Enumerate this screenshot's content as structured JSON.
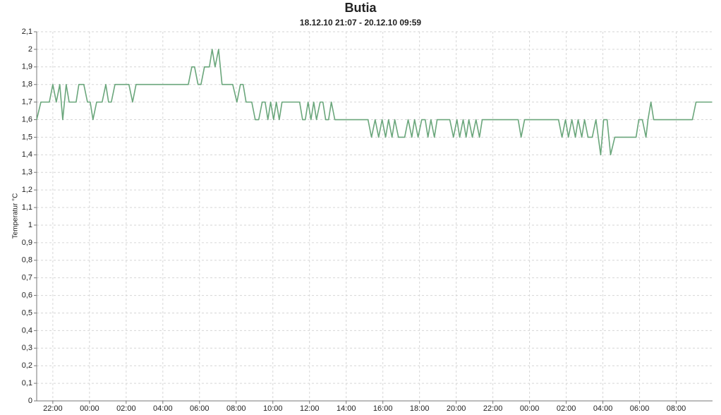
{
  "chart_data": {
    "type": "line",
    "title": "Butia",
    "subtitle": "18.12.10 21:07 - 20.12.10 09:59",
    "y_label": "Temperatur °C",
    "color": "#6aa67b",
    "grid": true,
    "xlim": [
      21.12,
      57.98
    ],
    "xticks": [
      {
        "value": 22,
        "label": "22:00"
      },
      {
        "value": 24,
        "label": "00:00"
      },
      {
        "value": 26,
        "label": "02:00"
      },
      {
        "value": 28,
        "label": "04:00"
      },
      {
        "value": 30,
        "label": "06:00"
      },
      {
        "value": 32,
        "label": "08:00"
      },
      {
        "value": 34,
        "label": "10:00"
      },
      {
        "value": 36,
        "label": "12:00"
      },
      {
        "value": 38,
        "label": "14:00"
      },
      {
        "value": 40,
        "label": "16:00"
      },
      {
        "value": 42,
        "label": "18:00"
      },
      {
        "value": 44,
        "label": "20:00"
      },
      {
        "value": 46,
        "label": "22:00"
      },
      {
        "value": 48,
        "label": "00:00"
      },
      {
        "value": 50,
        "label": "02:00"
      },
      {
        "value": 52,
        "label": "04:00"
      },
      {
        "value": 54,
        "label": "06:00"
      },
      {
        "value": 56,
        "label": "08:00"
      }
    ],
    "ylim": [
      0,
      2.1
    ],
    "yticks": [
      0,
      {
        "value": 0.1,
        "label": "0,1"
      },
      {
        "value": 0.2,
        "label": "0,2"
      },
      {
        "value": 0.3,
        "label": "0,3"
      },
      {
        "value": 0.4,
        "label": "0,4"
      },
      {
        "value": 0.5,
        "label": "0,5"
      },
      {
        "value": 0.6,
        "label": "0,6"
      },
      {
        "value": 0.7,
        "label": "0,7"
      },
      {
        "value": 0.8,
        "label": "0,8"
      },
      {
        "value": 0.9,
        "label": "0,9"
      },
      1,
      {
        "value": 1.1,
        "label": "1,1"
      },
      {
        "value": 1.2,
        "label": "1,2"
      },
      {
        "value": 1.3,
        "label": "1,3"
      },
      {
        "value": 1.4,
        "label": "1,4"
      },
      {
        "value": 1.5,
        "label": "1,5"
      },
      {
        "value": 1.6,
        "label": "1,6"
      },
      {
        "value": 1.7,
        "label": "1,7"
      },
      {
        "value": 1.8,
        "label": "1,8"
      },
      {
        "value": 1.9,
        "label": "1,9"
      },
      2,
      {
        "value": 2.1,
        "label": "2,1"
      }
    ],
    "x": [
      21.12,
      21.35,
      21.81,
      22.0,
      22.19,
      22.38,
      22.54,
      22.73,
      22.89,
      23.27,
      23.42,
      23.69,
      23.89,
      24.04,
      24.19,
      24.39,
      24.69,
      24.89,
      25.04,
      25.19,
      25.39,
      26.15,
      26.35,
      26.54,
      29.39,
      29.58,
      29.73,
      29.92,
      30.08,
      30.27,
      30.54,
      30.69,
      30.85,
      31.04,
      31.23,
      31.81,
      32.04,
      32.23,
      32.38,
      32.54,
      32.85,
      33.04,
      33.23,
      33.42,
      33.58,
      33.73,
      33.88,
      34.04,
      34.19,
      34.35,
      34.5,
      35.46,
      35.62,
      35.77,
      35.92,
      36.08,
      36.23,
      36.38,
      36.58,
      36.73,
      36.88,
      37.04,
      37.19,
      37.38,
      39.19,
      39.38,
      39.58,
      39.77,
      39.96,
      40.15,
      40.31,
      40.5,
      40.65,
      40.85,
      41.0,
      41.19,
      41.38,
      41.58,
      41.73,
      41.92,
      42.12,
      42.31,
      42.46,
      42.62,
      42.81,
      42.96,
      43.65,
      43.85,
      44.04,
      44.19,
      44.38,
      44.54,
      44.69,
      44.88,
      45.08,
      45.27,
      45.42,
      47.38,
      47.54,
      47.73,
      49.58,
      49.77,
      49.96,
      50.12,
      50.31,
      50.5,
      50.65,
      50.85,
      51.0,
      51.19,
      51.42,
      51.62,
      51.88,
      52.04,
      52.23,
      52.42,
      52.65,
      53.81,
      53.96,
      54.15,
      54.35,
      54.46,
      54.62,
      54.77,
      56.88,
      57.08,
      57.96
    ],
    "values": [
      1.6,
      1.7,
      1.7,
      1.8,
      1.7,
      1.8,
      1.6,
      1.8,
      1.7,
      1.7,
      1.8,
      1.8,
      1.7,
      1.7,
      1.6,
      1.7,
      1.7,
      1.8,
      1.7,
      1.7,
      1.8,
      1.8,
      1.7,
      1.8,
      1.8,
      1.9,
      1.9,
      1.8,
      1.8,
      1.9,
      1.9,
      2.0,
      1.9,
      2.0,
      1.8,
      1.8,
      1.7,
      1.8,
      1.8,
      1.7,
      1.7,
      1.6,
      1.6,
      1.7,
      1.7,
      1.6,
      1.7,
      1.6,
      1.7,
      1.6,
      1.7,
      1.7,
      1.6,
      1.6,
      1.7,
      1.6,
      1.7,
      1.6,
      1.7,
      1.7,
      1.6,
      1.6,
      1.7,
      1.6,
      1.6,
      1.5,
      1.6,
      1.5,
      1.6,
      1.5,
      1.6,
      1.5,
      1.6,
      1.5,
      1.5,
      1.5,
      1.6,
      1.5,
      1.6,
      1.5,
      1.6,
      1.6,
      1.5,
      1.6,
      1.5,
      1.6,
      1.6,
      1.5,
      1.6,
      1.5,
      1.6,
      1.5,
      1.6,
      1.5,
      1.6,
      1.5,
      1.6,
      1.6,
      1.5,
      1.6,
      1.6,
      1.5,
      1.6,
      1.5,
      1.6,
      1.5,
      1.6,
      1.5,
      1.6,
      1.5,
      1.5,
      1.6,
      1.4,
      1.6,
      1.6,
      1.4,
      1.5,
      1.5,
      1.6,
      1.6,
      1.5,
      1.6,
      1.7,
      1.6,
      1.6,
      1.7,
      1.7
    ]
  }
}
